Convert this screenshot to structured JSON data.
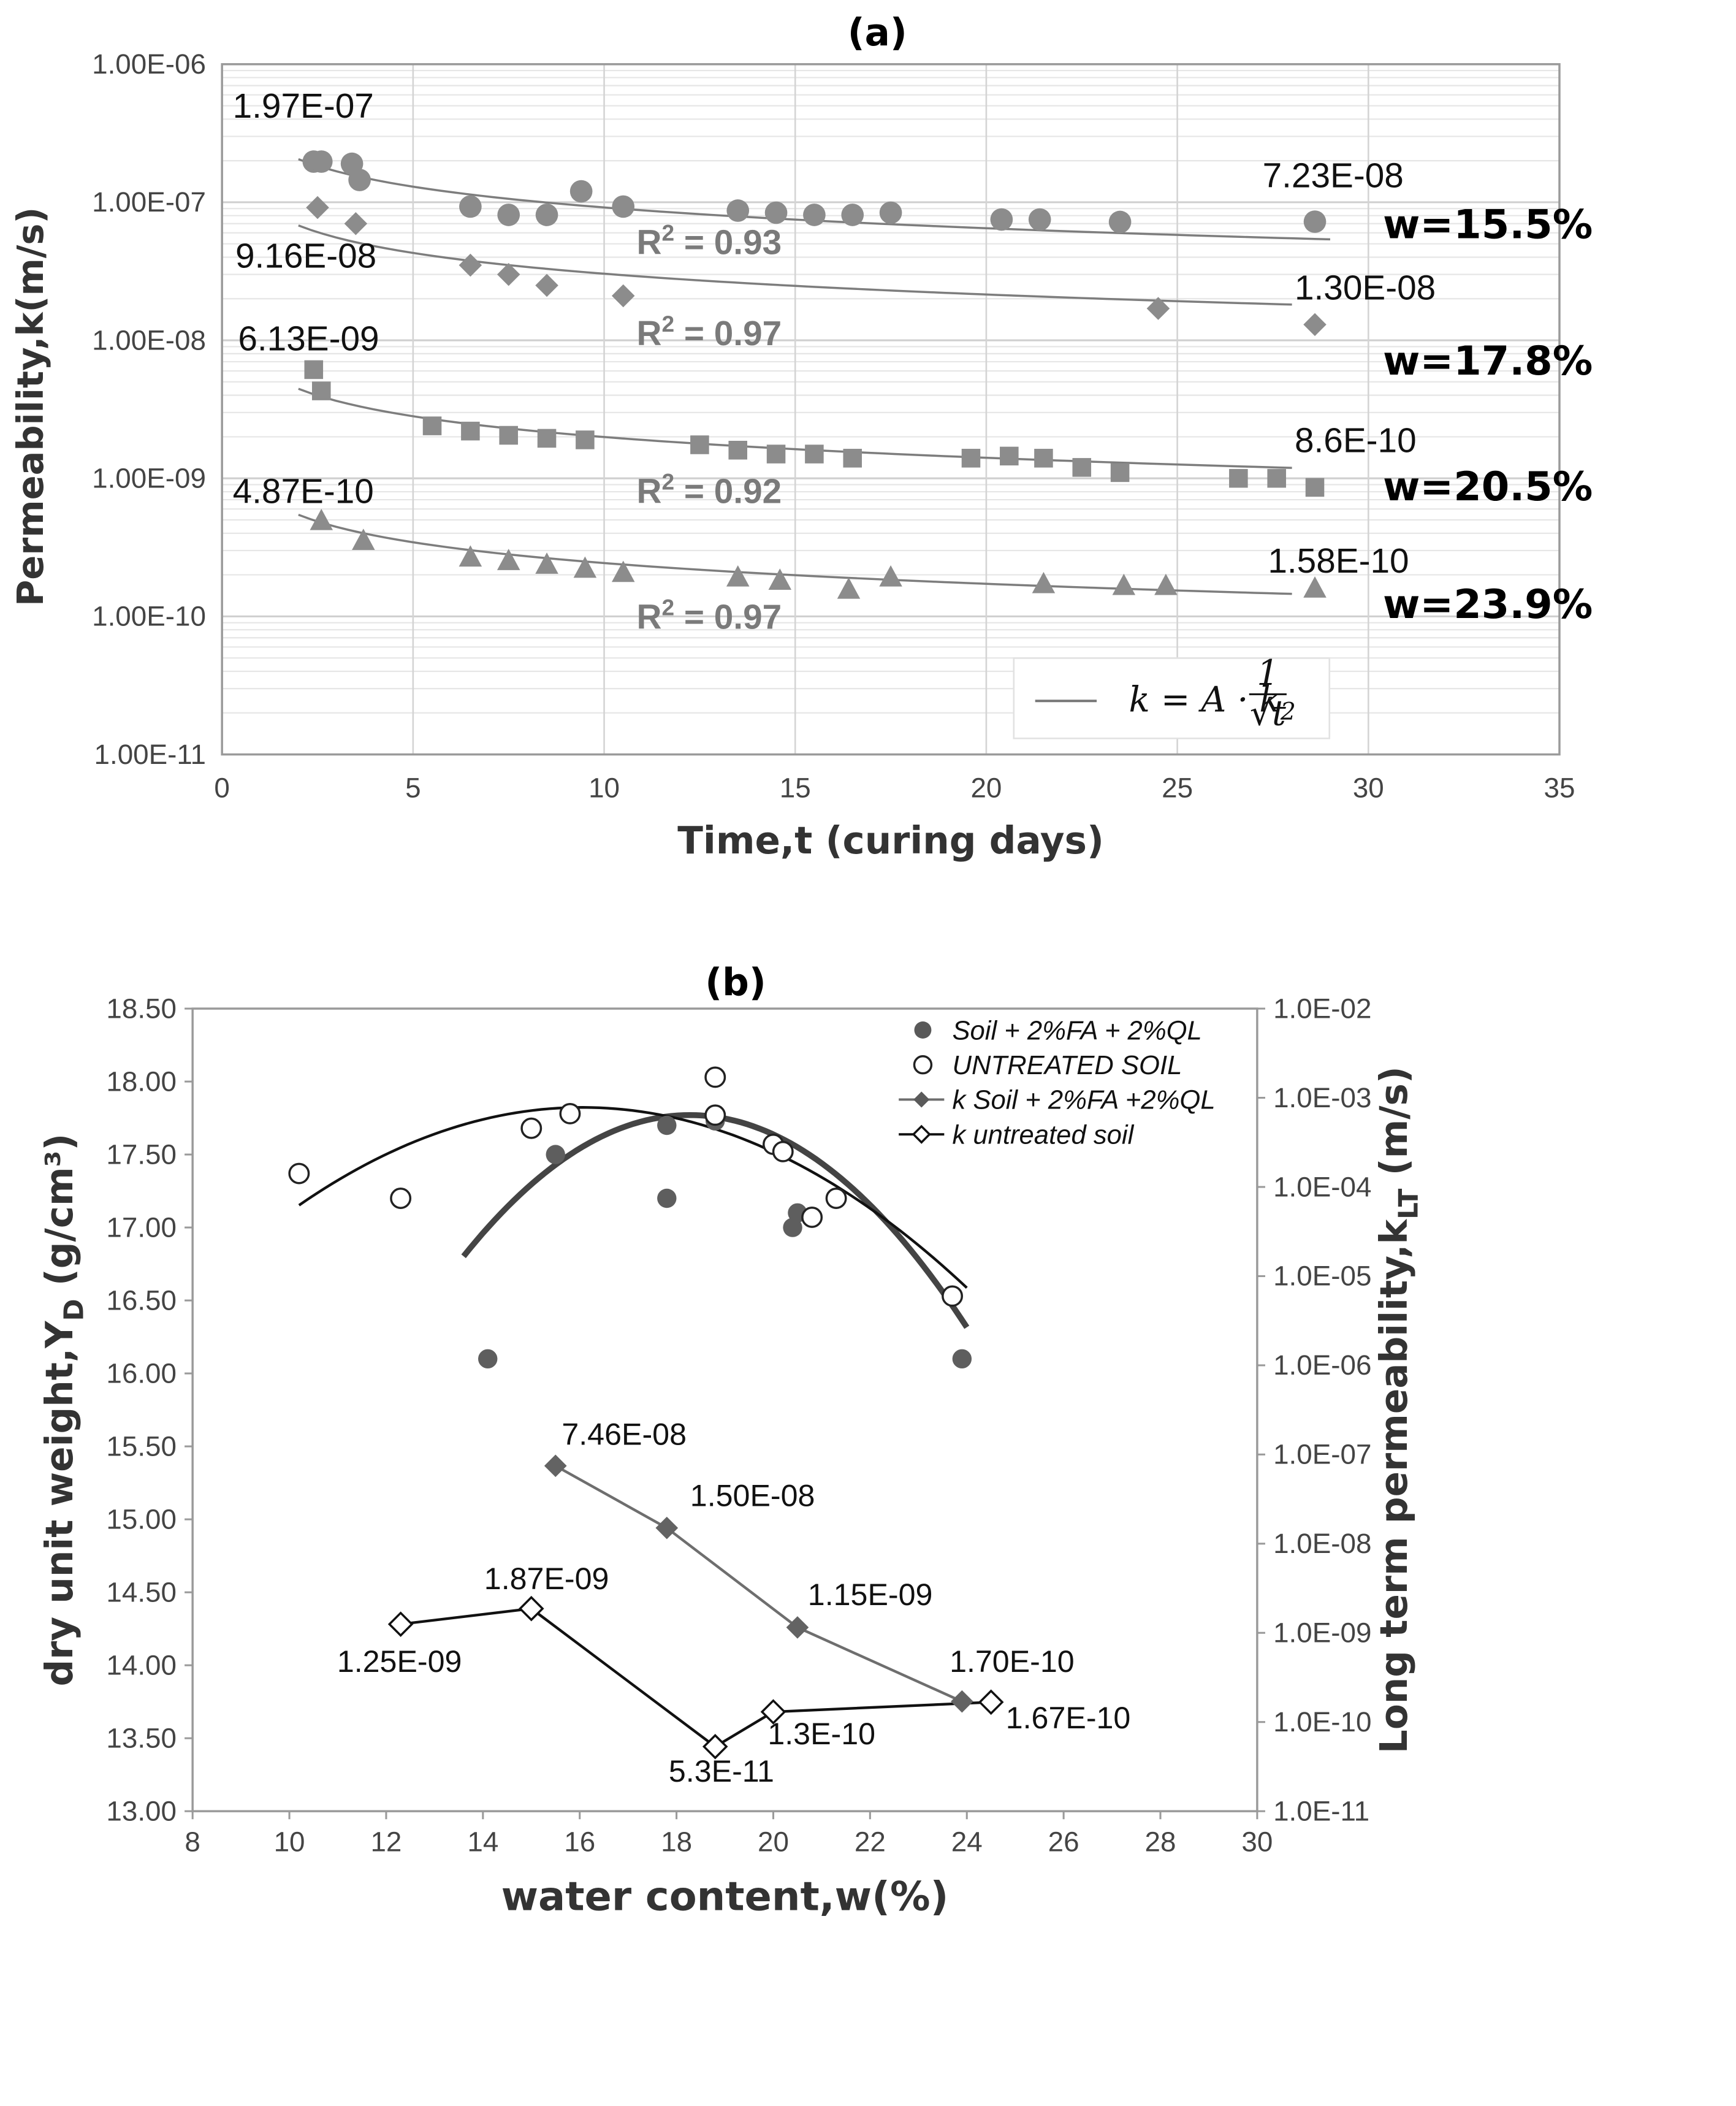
{
  "chart_data": [
    {
      "id": "a",
      "type": "scatter",
      "title": "(a)",
      "xlabel": "Time,t (curing days)",
      "ylabel": "Permeability,k(m/s)",
      "xlim": [
        0,
        35
      ],
      "ylim": [
        1e-11,
        1e-06
      ],
      "yscale": "log",
      "grid": true,
      "x_ticks": [
        "0",
        "5",
        "10",
        "15",
        "20",
        "25",
        "30",
        "35"
      ],
      "y_ticks": [
        "1.00E-11",
        "1.00E-10",
        "1.00E-09",
        "1.00E-08",
        "1.00E-07",
        "1.00E-06"
      ],
      "legend": {
        "position": "bottom-right",
        "entry": "k = A · k₂ (1/√t)",
        "eq_main": "k = A · k",
        "eq_sub": "2",
        "eq_num": "1",
        "eq_den": "√t"
      },
      "series": [
        {
          "name": "w=15.5%",
          "marker": "circle",
          "r2": "R² = 0.93",
          "r2_text": "R",
          "r2_sup": "2",
          "r2_val": " = 0.93",
          "start_label": "1.97E-07",
          "end_label": "7.23E-08",
          "fit": {
            "A": 2.9e-07,
            "from": 2.0,
            "to": 29.0
          },
          "x": [
            2.4,
            2.6,
            3.4,
            3.6,
            6.5,
            7.5,
            8.5,
            9.4,
            10.5,
            13.5,
            14.5,
            15.5,
            16.5,
            17.5,
            20.4,
            21.4,
            23.5,
            28.6
          ],
          "y": [
            1.97e-07,
            1.97e-07,
            1.9e-07,
            1.45e-07,
            9.3e-08,
            8.1e-08,
            8.1e-08,
            1.2e-07,
            9.3e-08,
            8.7e-08,
            8.4e-08,
            8.1e-08,
            8.1e-08,
            8.4e-08,
            7.5e-08,
            7.5e-08,
            7.2e-08,
            7.23e-08
          ]
        },
        {
          "name": "w=17.8%",
          "marker": "diamond",
          "r2": "R² = 0.97",
          "r2_text": "R",
          "r2_sup": "2",
          "r2_val": " = 0.97",
          "start_label": "9.16E-08",
          "end_label": "1.30E-08",
          "fit": {
            "A": 9.6e-08,
            "from": 2.0,
            "to": 28.0
          },
          "x": [
            2.5,
            3.5,
            6.5,
            7.5,
            8.5,
            10.5,
            24.5,
            28.6
          ],
          "y": [
            9.16e-08,
            7e-08,
            3.5e-08,
            3e-08,
            2.5e-08,
            2.1e-08,
            1.7e-08,
            1.3e-08
          ]
        },
        {
          "name": "w=20.5%",
          "marker": "square",
          "r2": "R² = 0.92",
          "r2_text": "R",
          "r2_sup": "2",
          "r2_val": " = 0.92",
          "start_label": "6.13E-09",
          "end_label": "8.6E-10",
          "fit": {
            "A": 6.3e-09,
            "from": 2.0,
            "to": 28.0
          },
          "x": [
            2.4,
            2.6,
            5.5,
            6.5,
            7.5,
            8.5,
            9.5,
            12.5,
            13.5,
            14.5,
            15.5,
            16.5,
            19.6,
            20.6,
            21.5,
            22.5,
            23.5,
            26.6,
            27.6,
            28.6
          ],
          "y": [
            6.13e-09,
            4.3e-09,
            2.4e-09,
            2.2e-09,
            2.05e-09,
            1.95e-09,
            1.9e-09,
            1.75e-09,
            1.6e-09,
            1.5e-09,
            1.5e-09,
            1.4e-09,
            1.4e-09,
            1.45e-09,
            1.4e-09,
            1.2e-09,
            1.1e-09,
            1e-09,
            1e-09,
            8.6e-10
          ]
        },
        {
          "name": "w=23.9%",
          "marker": "triangle",
          "r2": "R² = 0.97",
          "r2_text": "R",
          "r2_sup": "2",
          "r2_val": " = 0.97",
          "start_label": "4.87E-10",
          "end_label": "1.58E-10",
          "fit": {
            "A": 7.7e-10,
            "from": 2.0,
            "to": 28.0
          },
          "x": [
            2.6,
            3.7,
            6.5,
            7.5,
            8.5,
            9.5,
            10.5,
            13.5,
            14.6,
            16.4,
            17.5,
            21.5,
            23.6,
            24.7,
            28.6
          ],
          "y": [
            4.87e-10,
            3.5e-10,
            2.65e-10,
            2.5e-10,
            2.35e-10,
            2.2e-10,
            2.05e-10,
            1.9e-10,
            1.8e-10,
            1.55e-10,
            1.9e-10,
            1.7e-10,
            1.65e-10,
            1.65e-10,
            1.58e-10
          ]
        }
      ]
    },
    {
      "id": "b",
      "type": "scatter",
      "title": "(b)",
      "xlabel": "water content,w(%)",
      "ylabel_left": "dry unit weight,Υ",
      "ylabel_left_sub": "D",
      "ylabel_left_unit": " (g/cm³)",
      "ylabel_right": "Long term permeability,k",
      "ylabel_right_sub": "LT",
      "ylabel_right_unit": " (m/s)",
      "xlim": [
        8,
        30
      ],
      "ylim_left": [
        13.0,
        18.5
      ],
      "ylim_right": [
        1e-11,
        0.01
      ],
      "yscale_right": "log",
      "x_ticks": [
        "8",
        "10",
        "12",
        "14",
        "16",
        "18",
        "20",
        "22",
        "24",
        "26",
        "28",
        "30"
      ],
      "y_ticks_left": [
        "13.00",
        "13.50",
        "14.00",
        "14.50",
        "15.00",
        "15.50",
        "16.00",
        "16.50",
        "17.00",
        "17.50",
        "18.00",
        "18.50"
      ],
      "y_ticks_right": [
        "1.0E-11",
        "1.0E-10",
        "1.0E-09",
        "1.0E-08",
        "1.0E-07",
        "1.0E-06",
        "1.0E-05",
        "1.0E-04",
        "1.0E-03",
        "1.0E-02"
      ],
      "legend": {
        "position": "top-right",
        "entries": [
          "Soil + 2%FA + 2%QL",
          "UNTREATED SOIL",
          "k Soil + 2%FA +2%QL",
          "k untreated soil"
        ]
      },
      "series": [
        {
          "name": "Soil + 2%FA + 2%QL",
          "axis": "left",
          "marker": "filled-circle",
          "x": [
            14.1,
            15.5,
            17.8,
            17.8,
            18.8,
            20.4,
            20.5,
            23.9
          ],
          "y": [
            16.1,
            17.5,
            17.7,
            17.2,
            17.73,
            17.0,
            17.1,
            16.1
          ],
          "fit": [
            -0.04433,
            1.62,
            2.97,
            13.6,
            24.0
          ]
        },
        {
          "name": "UNTREATED SOIL",
          "axis": "left",
          "marker": "open-circle",
          "x": [
            10.2,
            12.3,
            15.0,
            15.8,
            18.8,
            18.8,
            20.0,
            20.2,
            20.8,
            21.3,
            23.7
          ],
          "y": [
            17.37,
            17.2,
            17.68,
            17.78,
            18.03,
            17.77,
            17.57,
            17.52,
            17.07,
            17.2,
            16.53
          ],
          "fit": [
            -0.01957,
            0.6283,
            12.78,
            10.2,
            24.0
          ]
        },
        {
          "name": "k Soil + 2%FA +2%QL",
          "axis": "right",
          "marker": "filled-diamond",
          "x": [
            15.5,
            17.8,
            20.5,
            23.9
          ],
          "y": [
            7.46e-08,
            1.5e-08,
            1.15e-09,
            1.7e-10
          ],
          "labels": [
            "7.46E-08",
            "1.50E-08",
            "1.15E-09",
            "1.70E-10"
          ]
        },
        {
          "name": "k untreated soil",
          "axis": "right",
          "marker": "open-diamond",
          "x": [
            12.3,
            15.0,
            18.8,
            20.0,
            24.5
          ],
          "y": [
            1.25e-09,
            1.87e-09,
            5.3e-11,
            1.3e-10,
            1.67e-10
          ],
          "labels": [
            "1.25E-09",
            "1.87E-09",
            "5.3E-11",
            "1.3E-10",
            "1.67E-10"
          ]
        }
      ]
    }
  ]
}
